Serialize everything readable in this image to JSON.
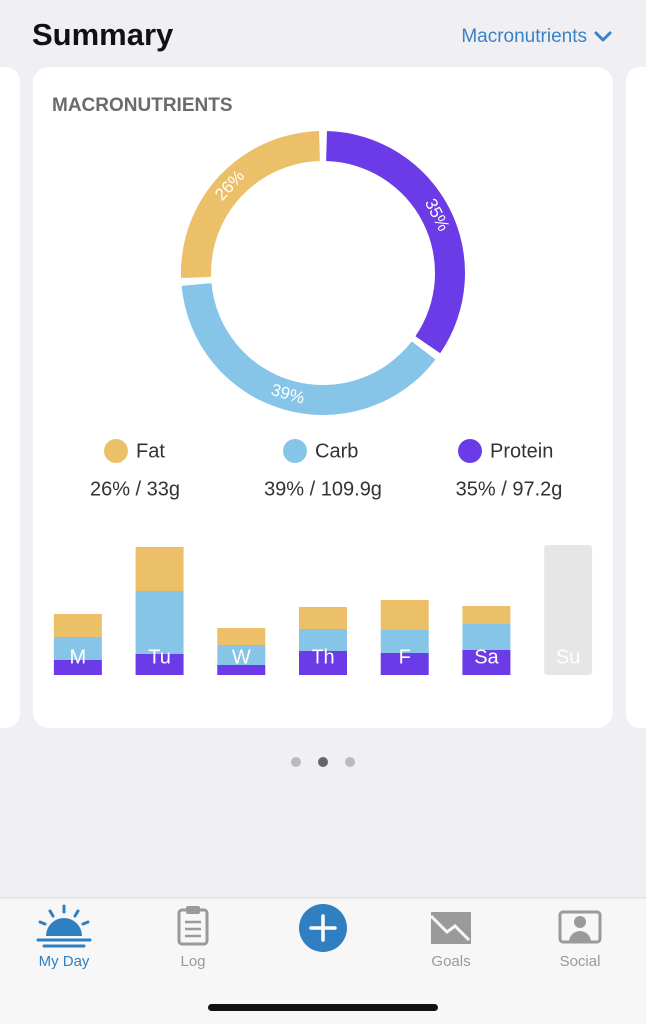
{
  "header": {
    "title": "Summary",
    "view_selector": "Macronutrients"
  },
  "card_title": "MACRONUTRIENTS",
  "chart_data": [
    {
      "type": "pie",
      "donut": true,
      "categories": [
        "Fat",
        "Carb",
        "Protein"
      ],
      "values": [
        26,
        39,
        35
      ],
      "value_labels": [
        "26%",
        "39%",
        "35%"
      ],
      "colors": [
        "#ecc069",
        "#86c5e7",
        "#6a3be6"
      ],
      "legend_details": [
        "26% / 33g",
        "39% / 109.9g",
        "35% / 97.2g"
      ]
    },
    {
      "type": "bar",
      "stacked": true,
      "categories": [
        "M",
        "Tu",
        "W",
        "Th",
        "F",
        "Sa",
        "Su"
      ],
      "series": [
        {
          "color": "#6a3be6",
          "values": [
            15,
            21,
            10,
            24,
            22,
            25,
            null
          ]
        },
        {
          "color": "#86c5e7",
          "values": [
            23,
            63,
            20,
            22,
            23,
            26,
            null
          ]
        },
        {
          "color": "#ecc069",
          "values": [
            23,
            44,
            17,
            22,
            30,
            18,
            null
          ]
        }
      ],
      "ylim": [
        0,
        130
      ]
    }
  ],
  "pager": {
    "pages": 3,
    "current": 1
  },
  "nav": {
    "items": [
      "My Day",
      "Log",
      "Goals",
      "Social"
    ],
    "active": 0
  }
}
